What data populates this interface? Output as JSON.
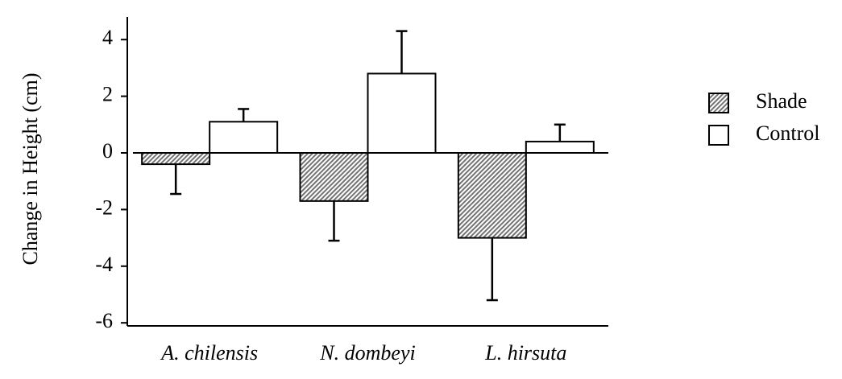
{
  "chart_data": {
    "type": "bar",
    "y_label": "Change in Height (cm)",
    "categories": [
      "A. chilensis",
      "N. dombeyi",
      "L. hirsuta"
    ],
    "series": [
      {
        "name": "Shade",
        "color": "#8a8a8a",
        "values": [
          -0.4,
          -1.7,
          -3.0
        ],
        "errors": [
          1.05,
          1.4,
          2.2
        ]
      },
      {
        "name": "Control",
        "color": "#ffffff",
        "values": [
          1.1,
          2.8,
          0.4
        ],
        "errors": [
          0.45,
          1.5,
          0.6
        ]
      }
    ],
    "ylim": [
      -6,
      4.8
    ],
    "yticks": [
      -6,
      -4,
      -2,
      0,
      2,
      4
    ],
    "grid": false
  }
}
